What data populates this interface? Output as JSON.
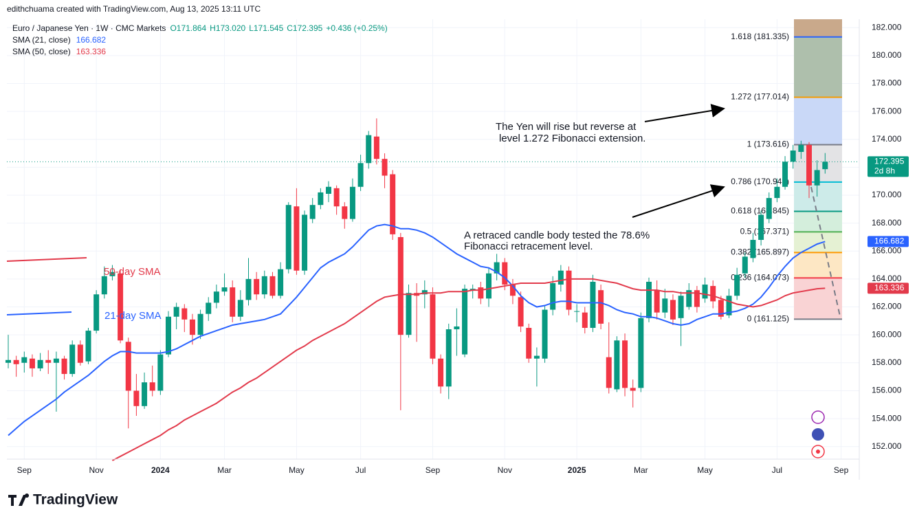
{
  "chart_data": {
    "type": "candlestick",
    "header": "edithchuama created with TradingView.com, Aug 13, 2025 13:11 UTC",
    "legend": {
      "symbol": "Euro / Japanese Yen · 1W · CMC Markets",
      "ohlc": [
        "O171.864",
        "H173.020",
        "L171.545",
        "C172.395"
      ],
      "change": "+0.436 (+0.25%)",
      "sma21": "SMA (21, close)",
      "sma50": "SMA (50, close)"
    },
    "categories": [
      null,
      null,
      "Sep",
      null,
      null,
      null,
      null,
      null,
      null,
      null,
      null,
      "Nov",
      null,
      null,
      null,
      null,
      null,
      null,
      null,
      "2024",
      null,
      null,
      null,
      null,
      null,
      null,
      null,
      "Mar",
      null,
      null,
      null,
      null,
      null,
      null,
      null,
      null,
      "May",
      null,
      null,
      null,
      null,
      null,
      null,
      null,
      "Jul",
      null,
      null,
      null,
      null,
      null,
      null,
      null,
      null,
      "Sep",
      null,
      null,
      null,
      null,
      null,
      null,
      null,
      null,
      "Nov",
      null,
      null,
      null,
      null,
      null,
      null,
      null,
      null,
      "2025",
      null,
      null,
      null,
      null,
      null,
      null,
      null,
      "Mar",
      null,
      null,
      null,
      null,
      null,
      null,
      null,
      "May",
      null,
      null,
      null,
      null,
      null,
      null,
      null,
      null,
      "Jul",
      null,
      null,
      null,
      null,
      null,
      null,
      null,
      "Sep"
    ],
    "open": [
      158.0,
      158.2,
      158.0,
      158.3,
      157.6,
      158.2,
      158.0,
      158.3,
      157.2,
      159.3,
      158.1,
      160.3,
      162.9,
      164.2,
      164.4,
      159.5,
      156.0,
      154.9,
      156.6,
      156.0,
      158.6,
      161.3,
      161.9,
      161.1,
      160.0,
      161.5,
      162.3,
      163.1,
      163.4,
      161.3,
      162.5,
      164.0,
      162.9,
      164.2,
      162.8,
      164.7,
      169.2,
      164.6,
      168.3,
      169.3,
      170.1,
      170.5,
      169.2,
      168.3,
      170.6,
      172.3,
      174.2,
      172.6,
      171.5,
      167.0,
      160.0,
      163.0,
      162.9,
      162.9,
      158.3,
      156.3,
      160.4,
      158.6,
      163.2,
      163.4,
      162.6,
      164.4,
      165.2,
      163.6,
      162.7,
      160.5,
      158.3,
      158.3,
      161.8,
      163.6,
      164.6,
      161.7,
      161.6,
      160.5,
      163.2,
      158.4,
      156.1,
      159.6,
      156.2,
      156.2,
      161.2,
      163.2,
      161.6,
      162.5,
      161.2,
      162.0,
      163.2,
      162.6,
      163.5,
      162.5,
      161.4,
      162.8,
      164.4,
      165.5,
      166.8,
      168.3,
      169.8,
      170.6,
      172.4,
      173.1,
      173.6,
      170.7,
      171.864,
      null,
      null
    ],
    "high": [
      160.0,
      158.5,
      158.8,
      158.6,
      158.7,
      158.9,
      158.8,
      158.5,
      159.6,
      159.6,
      160.5,
      163.2,
      164.9,
      165.0,
      164.7,
      159.8,
      157.2,
      157.3,
      157.8,
      158.9,
      161.7,
      162.3,
      162.2,
      161.5,
      161.8,
      162.7,
      163.6,
      164.4,
      163.9,
      163.2,
      165.5,
      164.5,
      164.6,
      164.5,
      165.2,
      169.5,
      170.5,
      168.9,
      169.8,
      170.5,
      171.0,
      170.7,
      169.5,
      171.2,
      172.9,
      174.6,
      175.5,
      173.0,
      171.8,
      167.3,
      163.6,
      163.7,
      163.9,
      163.4,
      158.6,
      160.8,
      161.9,
      163.6,
      163.6,
      163.8,
      164.8,
      165.8,
      165.5,
      164.0,
      163.1,
      160.8,
      159.1,
      162.1,
      164.2,
      165.0,
      164.9,
      162.2,
      162.0,
      164.3,
      163.6,
      160.9,
      159.9,
      160.1,
      156.8,
      161.6,
      164.1,
      163.9,
      163.3,
      162.9,
      163.1,
      163.7,
      163.5,
      164.1,
      163.9,
      162.8,
      163.3,
      164.8,
      165.9,
      167.3,
      168.9,
      170.2,
      171.2,
      172.8,
      173.6,
      173.9,
      173.8,
      172.5,
      173.02,
      null,
      null
    ],
    "low": [
      157.6,
      157.0,
      157.3,
      157.0,
      157.4,
      157.2,
      154.5,
      156.8,
      157.0,
      157.8,
      157.9,
      160.1,
      162.6,
      163.9,
      159.4,
      153.3,
      154.2,
      154.7,
      155.6,
      155.7,
      158.4,
      160.4,
      160.2,
      159.3,
      159.7,
      161.0,
      161.9,
      162.8,
      160.9,
      161.0,
      162.1,
      162.5,
      162.6,
      162.6,
      162.6,
      164.4,
      164.3,
      164.3,
      168.0,
      169.0,
      169.5,
      168.6,
      167.6,
      168.1,
      170.3,
      171.9,
      172.2,
      170.5,
      166.8,
      154.6,
      159.8,
      159.5,
      161.9,
      157.9,
      155.8,
      155.4,
      158.5,
      158.4,
      162.6,
      162.2,
      162.0,
      163.9,
      163.2,
      162.2,
      160.2,
      158.0,
      156.3,
      158.0,
      161.4,
      163.1,
      161.4,
      160.9,
      160.1,
      160.2,
      160.4,
      155.8,
      155.9,
      155.6,
      154.8,
      155.9,
      160.9,
      161.1,
      161.2,
      160.7,
      159.2,
      161.8,
      161.6,
      162.3,
      161.9,
      161.1,
      161.2,
      162.5,
      164.1,
      165.2,
      166.4,
      168.0,
      169.5,
      170.4,
      171.9,
      172.6,
      169.8,
      169.9,
      171.545,
      null,
      null
    ],
    "close": [
      158.2,
      157.9,
      158.4,
      157.6,
      158.2,
      158.0,
      158.3,
      157.2,
      159.3,
      158.0,
      160.3,
      162.9,
      164.2,
      164.5,
      159.6,
      156.0,
      154.9,
      156.6,
      156.0,
      158.6,
      161.3,
      162.0,
      161.1,
      160.0,
      161.5,
      162.3,
      163.1,
      163.4,
      161.3,
      162.5,
      164.0,
      162.9,
      164.2,
      162.8,
      164.7,
      169.3,
      164.6,
      168.6,
      169.3,
      170.2,
      170.6,
      169.2,
      168.3,
      170.6,
      172.3,
      174.3,
      172.6,
      171.4,
      167.2,
      160.0,
      163.0,
      162.8,
      163.2,
      158.3,
      156.3,
      160.4,
      160.6,
      163.3,
      163.3,
      162.6,
      164.4,
      165.2,
      163.6,
      162.8,
      160.6,
      158.3,
      158.5,
      161.8,
      163.7,
      164.6,
      161.8,
      161.7,
      160.5,
      163.8,
      160.8,
      156.2,
      159.6,
      156.2,
      156.0,
      161.2,
      163.8,
      161.6,
      162.6,
      161.1,
      162.8,
      163.2,
      162.0,
      163.6,
      162.4,
      161.3,
      162.8,
      164.3,
      165.6,
      166.8,
      168.6,
      169.8,
      170.6,
      172.4,
      173.2,
      173.6,
      170.7,
      171.8,
      172.395,
      null,
      null
    ],
    "up_color": "#089981",
    "down_color": "#f23645",
    "series": [
      {
        "name": "SMA (21, close)",
        "color": "#2962ff",
        "values": [
          152.8,
          153.3,
          153.8,
          154.2,
          154.6,
          155.0,
          155.4,
          155.9,
          156.3,
          156.7,
          157.1,
          157.6,
          158.1,
          158.5,
          158.8,
          158.8,
          158.7,
          158.7,
          158.7,
          158.7,
          158.8,
          159.0,
          159.3,
          159.6,
          159.9,
          160.1,
          160.3,
          160.5,
          160.7,
          160.8,
          160.9,
          161.0,
          161.1,
          161.3,
          161.5,
          162.1,
          162.7,
          163.4,
          164.1,
          164.8,
          165.2,
          165.5,
          165.8,
          166.3,
          166.9,
          167.5,
          167.8,
          167.9,
          167.8,
          167.6,
          167.6,
          167.5,
          167.3,
          167.0,
          166.6,
          166.2,
          165.8,
          165.5,
          165.2,
          164.9,
          164.8,
          164.5,
          164.1,
          163.5,
          162.8,
          162.3,
          162.0,
          162.1,
          162.3,
          162.4,
          162.4,
          162.3,
          162.3,
          162.3,
          162.3,
          162.1,
          161.8,
          161.6,
          161.5,
          161.3,
          161.3,
          161.2,
          161.0,
          160.8,
          160.7,
          160.8,
          161.1,
          161.3,
          161.5,
          161.5,
          161.6,
          161.7,
          161.9,
          162.2,
          162.7,
          163.4,
          164.2,
          164.9,
          165.5,
          165.9,
          166.2,
          166.5,
          166.682,
          null,
          null
        ]
      },
      {
        "name": "SMA (50, close)",
        "color": "#e23a4b",
        "values": [
          null,
          null,
          null,
          null,
          null,
          null,
          null,
          null,
          null,
          null,
          null,
          null,
          null,
          151.0,
          151.3,
          151.6,
          151.9,
          152.2,
          152.5,
          152.8,
          153.2,
          153.5,
          153.9,
          154.2,
          154.5,
          154.8,
          155.1,
          155.5,
          155.9,
          156.2,
          156.6,
          156.9,
          157.3,
          157.7,
          158.1,
          158.5,
          158.9,
          159.2,
          159.6,
          159.9,
          160.2,
          160.5,
          160.8,
          161.2,
          161.6,
          162.0,
          162.4,
          162.7,
          162.8,
          162.9,
          162.9,
          162.9,
          163.0,
          163.0,
          163.0,
          163.1,
          163.1,
          163.1,
          163.2,
          163.2,
          163.3,
          163.4,
          163.5,
          163.6,
          163.7,
          163.7,
          163.7,
          163.7,
          163.8,
          163.9,
          164.0,
          164.0,
          164.0,
          164.0,
          163.9,
          163.8,
          163.7,
          163.5,
          163.3,
          163.2,
          163.2,
          163.2,
          163.1,
          163.1,
          163.0,
          163.0,
          163.0,
          162.9,
          162.8,
          162.6,
          162.4,
          162.2,
          162.1,
          162.0,
          162.1,
          162.3,
          162.5,
          162.8,
          163.0,
          163.1,
          163.2,
          163.3,
          163.336,
          null,
          null
        ]
      }
    ],
    "countdown": "2d 8h",
    "ylim": [
      151.1,
      182.6
    ],
    "yticks": [
      {
        "value": 182,
        "label": "182.000"
      },
      {
        "value": 180,
        "label": "180.000"
      },
      {
        "value": 178,
        "label": "178.000"
      },
      {
        "value": 176,
        "label": "176.000"
      },
      {
        "value": 174,
        "label": "174.000"
      },
      {
        "value": 172,
        "label": "172.000"
      },
      {
        "value": 170,
        "label": "170.000"
      },
      {
        "value": 168,
        "label": "168.000"
      },
      {
        "value": 166,
        "label": "166.000"
      },
      {
        "value": 164,
        "label": "164.000"
      },
      {
        "value": 162,
        "label": "162.000"
      },
      {
        "value": 160,
        "label": "160.000"
      },
      {
        "value": 158,
        "label": "158.000"
      },
      {
        "value": 156,
        "label": "156.000"
      },
      {
        "value": 154,
        "label": "154.000"
      },
      {
        "value": 152,
        "label": "152.000"
      }
    ],
    "grid": true,
    "fib_levels": [
      {
        "value": 181.335,
        "label": "1.618 (181.335)",
        "color": "#2962ff",
        "band": "#aebfac"
      },
      {
        "value": 177.014,
        "label": "1.272 (177.014)",
        "color": "#f59b00",
        "band": "#c9d8f7"
      },
      {
        "value": 173.616,
        "label": "1 (173.616)",
        "color": "#787b86",
        "band": "#e3e3e5"
      },
      {
        "value": 170.943,
        "label": "0.786 (170.943)",
        "color": "#00bcd4",
        "band": "#cdebe9"
      },
      {
        "value": 168.845,
        "label": "0.618 (168.845)",
        "color": "#089981",
        "band": "#d4eedc"
      },
      {
        "value": 167.371,
        "label": "0.5 (167.371)",
        "color": "#4caf50",
        "band": "#e5f1d3"
      },
      {
        "value": 165.897,
        "label": "0.382 (165.897)",
        "color": "#ff9800",
        "band": "#fde7c4"
      },
      {
        "value": 164.073,
        "label": "0.236 (164.073)",
        "color": "#f23645",
        "band": "#f9d3d4"
      },
      {
        "value": 161.125,
        "label": "0 (161.125)",
        "color": "#787b86",
        "band": null
      }
    ],
    "annotations": [
      "The Yen will rise but reverse at",
      "level 1.272 Fibonacci extension.",
      "A retraced candle body tested the 78.6%",
      "Fibonacci retracement level.",
      "50-day SMA",
      "21-day SMA"
    ],
    "brand": "TradingView"
  }
}
